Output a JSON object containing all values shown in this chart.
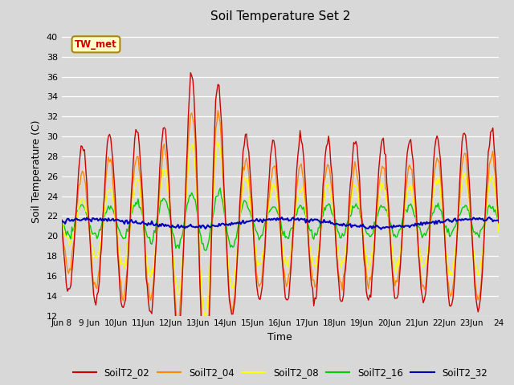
{
  "title": "Soil Temperature Set 2",
  "xlabel": "Time",
  "ylabel": "Soil Temperature (C)",
  "ylim": [
    12,
    41
  ],
  "yticks": [
    12,
    14,
    16,
    18,
    20,
    22,
    24,
    26,
    28,
    30,
    32,
    34,
    36,
    38,
    40
  ],
  "bg_color": "#d8d8d8",
  "series_colors": {
    "SoilT2_02": "#cc0000",
    "SoilT2_04": "#ff8800",
    "SoilT2_08": "#ffff00",
    "SoilT2_16": "#00cc00",
    "SoilT2_32": "#0000bb"
  },
  "annotation_text": "TW_met",
  "annotation_color": "#cc0000",
  "annotation_bg": "#ffffcc",
  "annotation_border": "#aa8800",
  "x_tick_labels": [
    "Jun 8",
    "9 Jun",
    "10Jun",
    "11Jun",
    "12Jun",
    "13Jun",
    "14Jun",
    "15Jun",
    "16Jun",
    "17Jun",
    "18Jun",
    "19Jun",
    "20Jun",
    "21Jun",
    "22Jun",
    "23Jun",
    "24"
  ],
  "legend_entries": [
    "SoilT2_02",
    "SoilT2_04",
    "SoilT2_08",
    "SoilT2_16",
    "SoilT2_32"
  ]
}
